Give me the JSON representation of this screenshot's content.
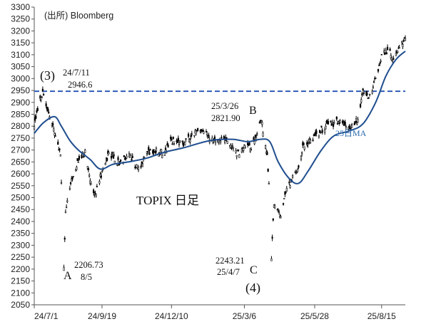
{
  "chart_data": {
    "type": "candlestick",
    "source_label": "(出所) Bloomberg",
    "title": "TOPIX 日足",
    "colors": {
      "candles": "#000000",
      "ma": "#1f4e8f",
      "reference_line": "#2e5cb8",
      "ma_label": "#2b6cb0"
    },
    "ylim": [
      2050,
      3300
    ],
    "y_ticks": [
      "2050",
      "2100",
      "2150",
      "2200",
      "2250",
      "2300",
      "2350",
      "2400",
      "2450",
      "2500",
      "2550",
      "2600",
      "2650",
      "2700",
      "2750",
      "2800",
      "2850",
      "2900",
      "2950",
      "3000",
      "3050",
      "3100",
      "3150",
      "3200",
      "3250",
      "3300"
    ],
    "x_ticks": [
      "24/7/1",
      "24/9/19",
      "24/12/10",
      "25/3/6",
      "25/5/28",
      "25/8/15"
    ],
    "x_range": [
      "2024-07-01",
      "2025-09-12"
    ],
    "reference_line": {
      "value": 2946.6,
      "style": "dashed"
    },
    "ma_label": "25日MA",
    "annotations": [
      {
        "id": "ann_3",
        "text": "(3)"
      },
      {
        "id": "ann_high1_date",
        "text": "24/7/11"
      },
      {
        "id": "ann_high1_val",
        "text": "2946.6"
      },
      {
        "id": "ann_a_val",
        "text": "2206.73"
      },
      {
        "id": "ann_a_date",
        "text": "8/5"
      },
      {
        "id": "ann_a",
        "text": "A"
      },
      {
        "id": "ann_high2_date",
        "text": "25/3/26"
      },
      {
        "id": "ann_high2_val",
        "text": "2821.90"
      },
      {
        "id": "ann_b",
        "text": "B"
      },
      {
        "id": "ann_c_val",
        "text": "2243.21"
      },
      {
        "id": "ann_c_date",
        "text": "25/4/7"
      },
      {
        "id": "ann_c",
        "text": "C"
      },
      {
        "id": "ann_4",
        "text": "(4)"
      }
    ],
    "price_path": [
      [
        "2024-07-01",
        2800
      ],
      [
        "2024-07-11",
        2946.6
      ],
      [
        "2024-07-19",
        2840
      ],
      [
        "2024-07-26",
        2760
      ],
      [
        "2024-08-01",
        2680
      ],
      [
        "2024-08-05",
        2206.73
      ],
      [
        "2024-08-07",
        2440
      ],
      [
        "2024-08-14",
        2580
      ],
      [
        "2024-08-22",
        2650
      ],
      [
        "2024-08-30",
        2700
      ],
      [
        "2024-09-06",
        2560
      ],
      [
        "2024-09-11",
        2510
      ],
      [
        "2024-09-19",
        2610
      ],
      [
        "2024-09-27",
        2690
      ],
      [
        "2024-10-10",
        2640
      ],
      [
        "2024-10-22",
        2680
      ],
      [
        "2024-10-31",
        2620
      ],
      [
        "2024-11-15",
        2700
      ],
      [
        "2024-12-02",
        2690
      ],
      [
        "2024-12-10",
        2740
      ],
      [
        "2024-12-25",
        2730
      ],
      [
        "2025-01-10",
        2780
      ],
      [
        "2025-01-27",
        2750
      ],
      [
        "2025-02-12",
        2740
      ],
      [
        "2025-02-28",
        2680
      ],
      [
        "2025-03-06",
        2720
      ],
      [
        "2025-03-14",
        2700
      ],
      [
        "2025-03-26",
        2821.9
      ],
      [
        "2025-04-02",
        2680
      ],
      [
        "2025-04-04",
        2560
      ],
      [
        "2025-04-07",
        2243.21
      ],
      [
        "2025-04-10",
        2470
      ],
      [
        "2025-04-18",
        2420
      ],
      [
        "2025-04-25",
        2540
      ],
      [
        "2025-05-08",
        2620
      ],
      [
        "2025-05-15",
        2720
      ],
      [
        "2025-05-28",
        2760
      ],
      [
        "2025-06-10",
        2800
      ],
      [
        "2025-06-25",
        2820
      ],
      [
        "2025-07-08",
        2790
      ],
      [
        "2025-07-18",
        2830
      ],
      [
        "2025-07-24",
        2950
      ],
      [
        "2025-07-31",
        2920
      ],
      [
        "2025-08-08",
        3000
      ],
      [
        "2025-08-15",
        3100
      ],
      [
        "2025-08-22",
        3120
      ],
      [
        "2025-08-29",
        3080
      ],
      [
        "2025-09-05",
        3130
      ],
      [
        "2025-09-12",
        3170
      ]
    ],
    "ma_25d": [
      [
        "2024-07-01",
        2770
      ],
      [
        "2024-07-12",
        2815
      ],
      [
        "2024-07-25",
        2840
      ],
      [
        "2024-08-02",
        2800
      ],
      [
        "2024-08-12",
        2740
      ],
      [
        "2024-08-22",
        2700
      ],
      [
        "2024-09-05",
        2660
      ],
      [
        "2024-09-17",
        2620
      ],
      [
        "2024-10-02",
        2640
      ],
      [
        "2024-10-20",
        2650
      ],
      [
        "2024-11-10",
        2665
      ],
      [
        "2024-12-01",
        2690
      ],
      [
        "2024-12-25",
        2710
      ],
      [
        "2025-01-25",
        2740
      ],
      [
        "2025-02-20",
        2745
      ],
      [
        "2025-03-10",
        2735
      ],
      [
        "2025-03-25",
        2745
      ],
      [
        "2025-04-05",
        2735
      ],
      [
        "2025-04-15",
        2650
      ],
      [
        "2025-04-28",
        2580
      ],
      [
        "2025-05-09",
        2560
      ],
      [
        "2025-05-20",
        2610
      ],
      [
        "2025-06-05",
        2700
      ],
      [
        "2025-06-20",
        2760
      ],
      [
        "2025-07-08",
        2780
      ],
      [
        "2025-07-24",
        2810
      ],
      [
        "2025-08-08",
        2900
      ],
      [
        "2025-08-20",
        3010
      ],
      [
        "2025-09-01",
        3080
      ],
      [
        "2025-09-12",
        3115
      ]
    ]
  }
}
